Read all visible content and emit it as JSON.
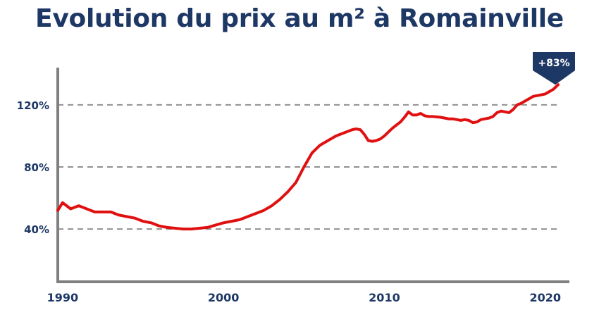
{
  "title": "Evolution du prix au m² à Romainville",
  "chart_data": {
    "type": "line",
    "title": "Evolution du prix au m² à Romainville",
    "xlabel": "",
    "ylabel": "",
    "xlim": [
      1989.7,
      2020.8
    ],
    "ylim": [
      6,
      144
    ],
    "y_ticks": [
      {
        "value": 40,
        "label": "40%"
      },
      {
        "value": 80,
        "label": "80%"
      },
      {
        "value": 120,
        "label": "120%"
      }
    ],
    "x_ticks": [
      {
        "value": 1990,
        "label": "1990"
      },
      {
        "value": 2000,
        "label": "2000"
      },
      {
        "value": 2010,
        "label": "2010"
      },
      {
        "value": 2020,
        "label": "2020"
      }
    ],
    "grid": "horizontal-dashed",
    "line_color": "#e01010",
    "axis_color": "#808080",
    "grid_color": "#909090",
    "text_color": "#1e3866",
    "badge_color": "#1e3866",
    "annotation": {
      "label": "+83%",
      "x": 2020.8,
      "y": 133
    },
    "series": [
      {
        "x": [
          1989.7,
          1990.0,
          1990.25,
          1990.5,
          1990.75,
          1991.0,
          1991.25,
          1991.5,
          1991.75,
          1992.0,
          1992.25,
          1992.5,
          1992.75,
          1993.0,
          1993.25,
          1993.5,
          1994.0,
          1994.5,
          1995.0,
          1995.5,
          1996.0,
          1996.5,
          1997.0,
          1997.5,
          1998.0,
          1998.5,
          1999.0,
          1999.5,
          2000.0,
          2000.5,
          2001.0,
          2001.5,
          2002.0,
          2002.5,
          2003.0,
          2003.5,
          2004.0,
          2004.5,
          2005.0,
          2005.5,
          2006.0,
          2006.5,
          2007.0,
          2007.5,
          2008.0,
          2008.25,
          2008.5,
          2008.75,
          2009.0,
          2009.25,
          2009.5,
          2009.75,
          2010.0,
          2010.5,
          2011.0,
          2011.25,
          2011.5,
          2011.75,
          2012.0,
          2012.25,
          2012.5,
          2012.75,
          2013.0,
          2013.5,
          2014.0,
          2014.25,
          2014.5,
          2014.75,
          2015.0,
          2015.25,
          2015.5,
          2015.75,
          2016.0,
          2016.25,
          2016.5,
          2016.75,
          2017.0,
          2017.25,
          2017.5,
          2017.75,
          2018.0,
          2018.25,
          2018.5,
          2018.75,
          2019.0,
          2019.25,
          2019.5,
          2019.75,
          2020.0,
          2020.25,
          2020.5,
          2020.8
        ],
        "y": [
          52,
          57,
          55,
          53,
          54,
          55,
          54,
          53,
          52,
          51,
          51,
          51,
          51,
          51,
          50,
          49,
          48,
          47,
          45,
          44,
          42,
          41,
          40.5,
          40,
          40,
          40.5,
          41,
          42.5,
          44,
          45,
          46,
          48,
          50,
          52,
          55,
          59,
          64,
          70,
          80,
          89,
          94,
          97,
          100,
          102,
          104,
          104.5,
          104,
          101,
          97,
          96.5,
          97,
          98,
          100,
          105,
          109,
          112,
          115.5,
          113.5,
          113.5,
          114.5,
          113,
          112.5,
          112.5,
          112,
          111,
          111,
          110.5,
          110,
          110.5,
          110,
          108.5,
          109,
          110.5,
          111,
          111.5,
          112.5,
          115,
          116,
          115.5,
          115,
          117,
          120,
          121,
          122.5,
          124,
          125.5,
          126,
          126.5,
          127,
          128.5,
          130,
          133
        ]
      }
    ]
  }
}
